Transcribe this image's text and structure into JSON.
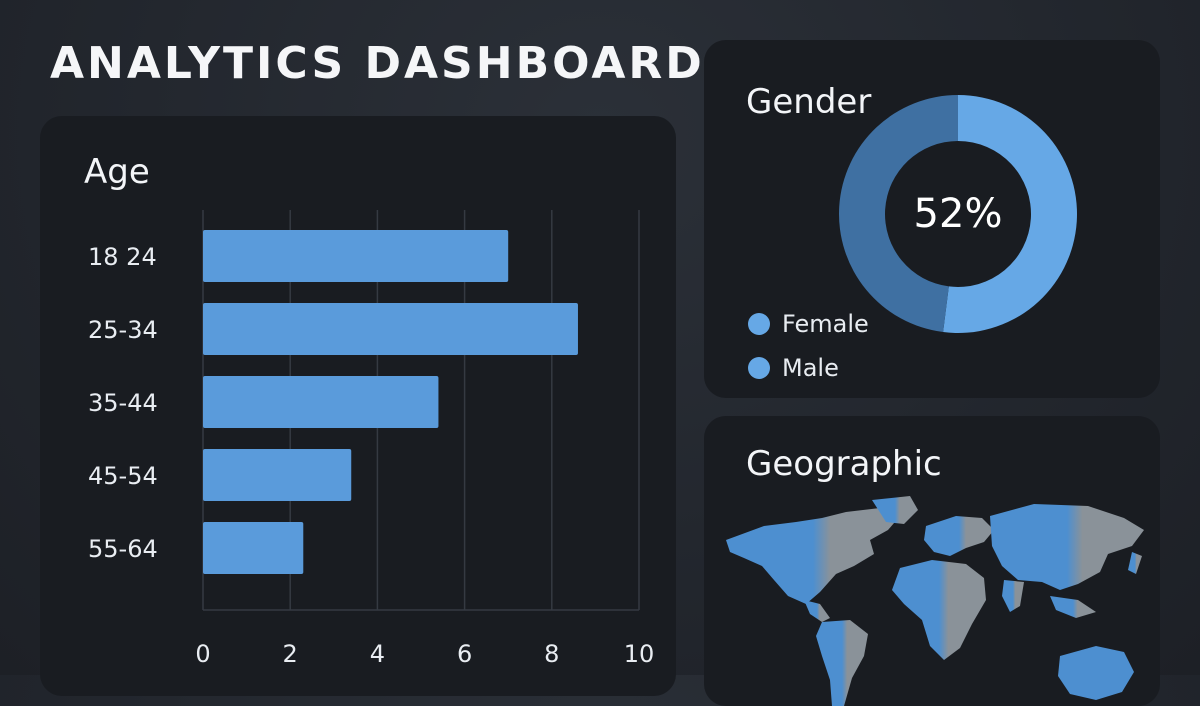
{
  "page": {
    "title": "ANALYTICS DASHBOARD"
  },
  "colors": {
    "bar": "#5a9bdb",
    "female": "#66a8e6",
    "male": "#3f70a2",
    "map_blue": "#4d8fd0",
    "map_gray": "#8a9299"
  },
  "age": {
    "title": "Age",
    "chart_data": {
      "type": "bar",
      "orientation": "horizontal",
      "categories": [
        "18 24",
        "25-34",
        "35-44",
        "45-54",
        "55-64"
      ],
      "values": [
        7.0,
        8.6,
        5.4,
        3.4,
        2.3
      ],
      "xlim": [
        0,
        10
      ],
      "xticks": [
        "0",
        "2",
        "4",
        "6",
        "8",
        "10"
      ],
      "grid": true
    }
  },
  "gender": {
    "title": "Gender",
    "center_value": "52%",
    "legend": [
      {
        "label": "Female",
        "color_key": "female"
      },
      {
        "label": "Male",
        "color_key": "male"
      }
    ],
    "chart_data": {
      "type": "pie",
      "labels": [
        "Female",
        "Male"
      ],
      "values": [
        52,
        48
      ]
    }
  },
  "geographic": {
    "title": "Geographic",
    "icon": "world-map"
  }
}
